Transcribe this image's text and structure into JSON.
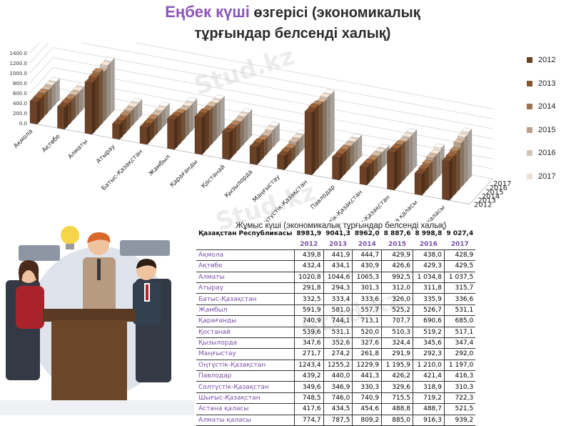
{
  "title": {
    "part1": "Еңбек күші",
    "part2": " өзгерісі (экономикалық",
    "line2": "тұрғындар белсенді халық)"
  },
  "watermark": "Stud.kz",
  "colors": {
    "2012": "#6b4126",
    "2013": "#86542f",
    "2014": "#9c7250",
    "2015": "#b9a08a",
    "2016": "#d2c4b6",
    "2017": "#e9e0d7"
  },
  "chart_data": {
    "type": "bar",
    "subtype": "3d-column",
    "title": "Еңбек күші өзгерісі (экономикалық тұрғындар белсенді халық)",
    "categories": [
      "Ақмола",
      "Ақтөбе",
      "Алматы",
      "Атырау",
      "Батыс-Қазақстан",
      "Жамбыл",
      "Қарағанды",
      "Қостанай",
      "Қызылорда",
      "Маңғыстау",
      "Оңтүстік-Қазақстан",
      "Павлодар",
      "Солтүстік-Қазақстан",
      "Шығыс-Қазақстан",
      "Астана қаласы",
      "Алматы қаласы"
    ],
    "series": [
      {
        "name": "2012",
        "values": [
          439.8,
          432.4,
          1020.8,
          291.8,
          332.5,
          591.9,
          740.9,
          539.6,
          347.6,
          271.7,
          1243.4,
          439.2,
          349.6,
          748.5,
          417.6,
          774.7
        ]
      },
      {
        "name": "2013",
        "values": [
          441.9,
          434.1,
          1044.6,
          294.3,
          333.4,
          581.0,
          744.1,
          531.1,
          352.6,
          274.2,
          1255.2,
          440.0,
          346.9,
          746.0,
          434.5,
          787.5
        ]
      },
      {
        "name": "2014",
        "values": [
          444.7,
          430.9,
          1065.3,
          301.3,
          333.6,
          557.7,
          713.1,
          520.0,
          327.6,
          261.8,
          1229.9,
          441.3,
          330.3,
          740.9,
          454.6,
          809.2
        ]
      },
      {
        "name": "2015",
        "values": [
          429.9,
          426.6,
          992.5,
          312.0,
          326.0,
          525.2,
          707.7,
          510.3,
          324.4,
          291.9,
          1195.9,
          426.2,
          329.6,
          715.5,
          488.8,
          885.0
        ]
      },
      {
        "name": "2016",
        "values": [
          438.0,
          429.3,
          1034.8,
          311.8,
          335.9,
          526.7,
          690.6,
          519.2,
          345.6,
          292.3,
          1210.0,
          421.4,
          318.9,
          719.2,
          488.7,
          916.3
        ]
      },
      {
        "name": "2017",
        "values": [
          428.9,
          429.5,
          1037.5,
          315.7,
          336.6,
          531.1,
          685.0,
          517.1,
          347.4,
          292.0,
          1197.0,
          416.3,
          310.3,
          722.3,
          521.5,
          939.2
        ]
      }
    ],
    "yticks": [
      "0.0",
      "200.0",
      "400.0",
      "600.0",
      "800.0",
      "1000.0",
      "1200.0",
      "1400.0"
    ],
    "ylim": [
      0,
      1400
    ],
    "depth_labels": [
      "2012",
      "2013",
      "2014",
      "2015",
      "2016",
      "2017"
    ],
    "legend": [
      "2012",
      "2013",
      "2014",
      "2015",
      "2016",
      "2017"
    ],
    "legend_position": "right"
  },
  "table": {
    "caption": "Жұмыс күші (экономикалық тұрғындар белсенді халық)",
    "total_label": "Қазақстан Республикасы",
    "totals": [
      "8981,9",
      "9041,3",
      "8962,0",
      "8 887,6",
      "8 998,8",
      "9 027,4"
    ],
    "years": [
      "2012",
      "2013",
      "2014",
      "2015",
      "2016",
      "2017"
    ],
    "rows": [
      {
        "region": "Ақмола",
        "values": [
          "439,8",
          "441,9",
          "444,7",
          "429,9",
          "438,0",
          "428,9"
        ]
      },
      {
        "region": "Ақтөбе",
        "values": [
          "432,4",
          "434,1",
          "430,9",
          "426,6",
          "429,3",
          "429,5"
        ]
      },
      {
        "region": "Алматы",
        "values": [
          "1020,8",
          "1044,6",
          "1065,3",
          "992,5",
          "1 034,8",
          "1 037,5"
        ]
      },
      {
        "region": "Атырау",
        "values": [
          "291,8",
          "294,3",
          "301,3",
          "312,0",
          "311,8",
          "315,7"
        ]
      },
      {
        "region": "Батыс-Қазақстан",
        "values": [
          "332,5",
          "333,4",
          "333,6",
          "326,0",
          "335,9",
          "336,6"
        ]
      },
      {
        "region": "Жамбыл",
        "values": [
          "591,9",
          "581,0",
          "557,7",
          "525,2",
          "526,7",
          "531,1"
        ]
      },
      {
        "region": "Қарағанды",
        "values": [
          "740,9",
          "744,1",
          "713,1",
          "707,7",
          "690,6",
          "685,0"
        ]
      },
      {
        "region": "Қостанай",
        "values": [
          "539,6",
          "531,1",
          "520,0",
          "510,3",
          "519,2",
          "517,1"
        ]
      },
      {
        "region": "Қызылорда",
        "values": [
          "347,6",
          "352,6",
          "327,6",
          "324,4",
          "345,6",
          "347,4"
        ]
      },
      {
        "region": "Маңғыстау",
        "values": [
          "271,7",
          "274,2",
          "261,8",
          "291,9",
          "292,3",
          "292,0"
        ]
      },
      {
        "region": "Оңтүстік-Қазақстан",
        "values": [
          "1243,4",
          "1255,2",
          "1229,9",
          "1 195,9",
          "1 210,0",
          "1 197,0"
        ]
      },
      {
        "region": "Павлодар",
        "values": [
          "439,2",
          "440,0",
          "441,3",
          "426,2",
          "421,4",
          "416,3"
        ]
      },
      {
        "region": "Солтүстік-Қазақстан",
        "values": [
          "349,6",
          "346,9",
          "330,3",
          "329,6",
          "318,9",
          "310,3"
        ]
      },
      {
        "region": "Шығыс-Қазақстан",
        "values": [
          "748,5",
          "746,0",
          "740,9",
          "715,5",
          "719,2",
          "722,3"
        ]
      },
      {
        "region": "Астана қаласы",
        "values": [
          "417,6",
          "434,5",
          "454,6",
          "488,8",
          "488,7",
          "521,5"
        ]
      },
      {
        "region": "Алматы қаласы",
        "values": [
          "774,7",
          "787,5",
          "809,2",
          "885,0",
          "916,3",
          "939,2"
        ]
      }
    ]
  }
}
